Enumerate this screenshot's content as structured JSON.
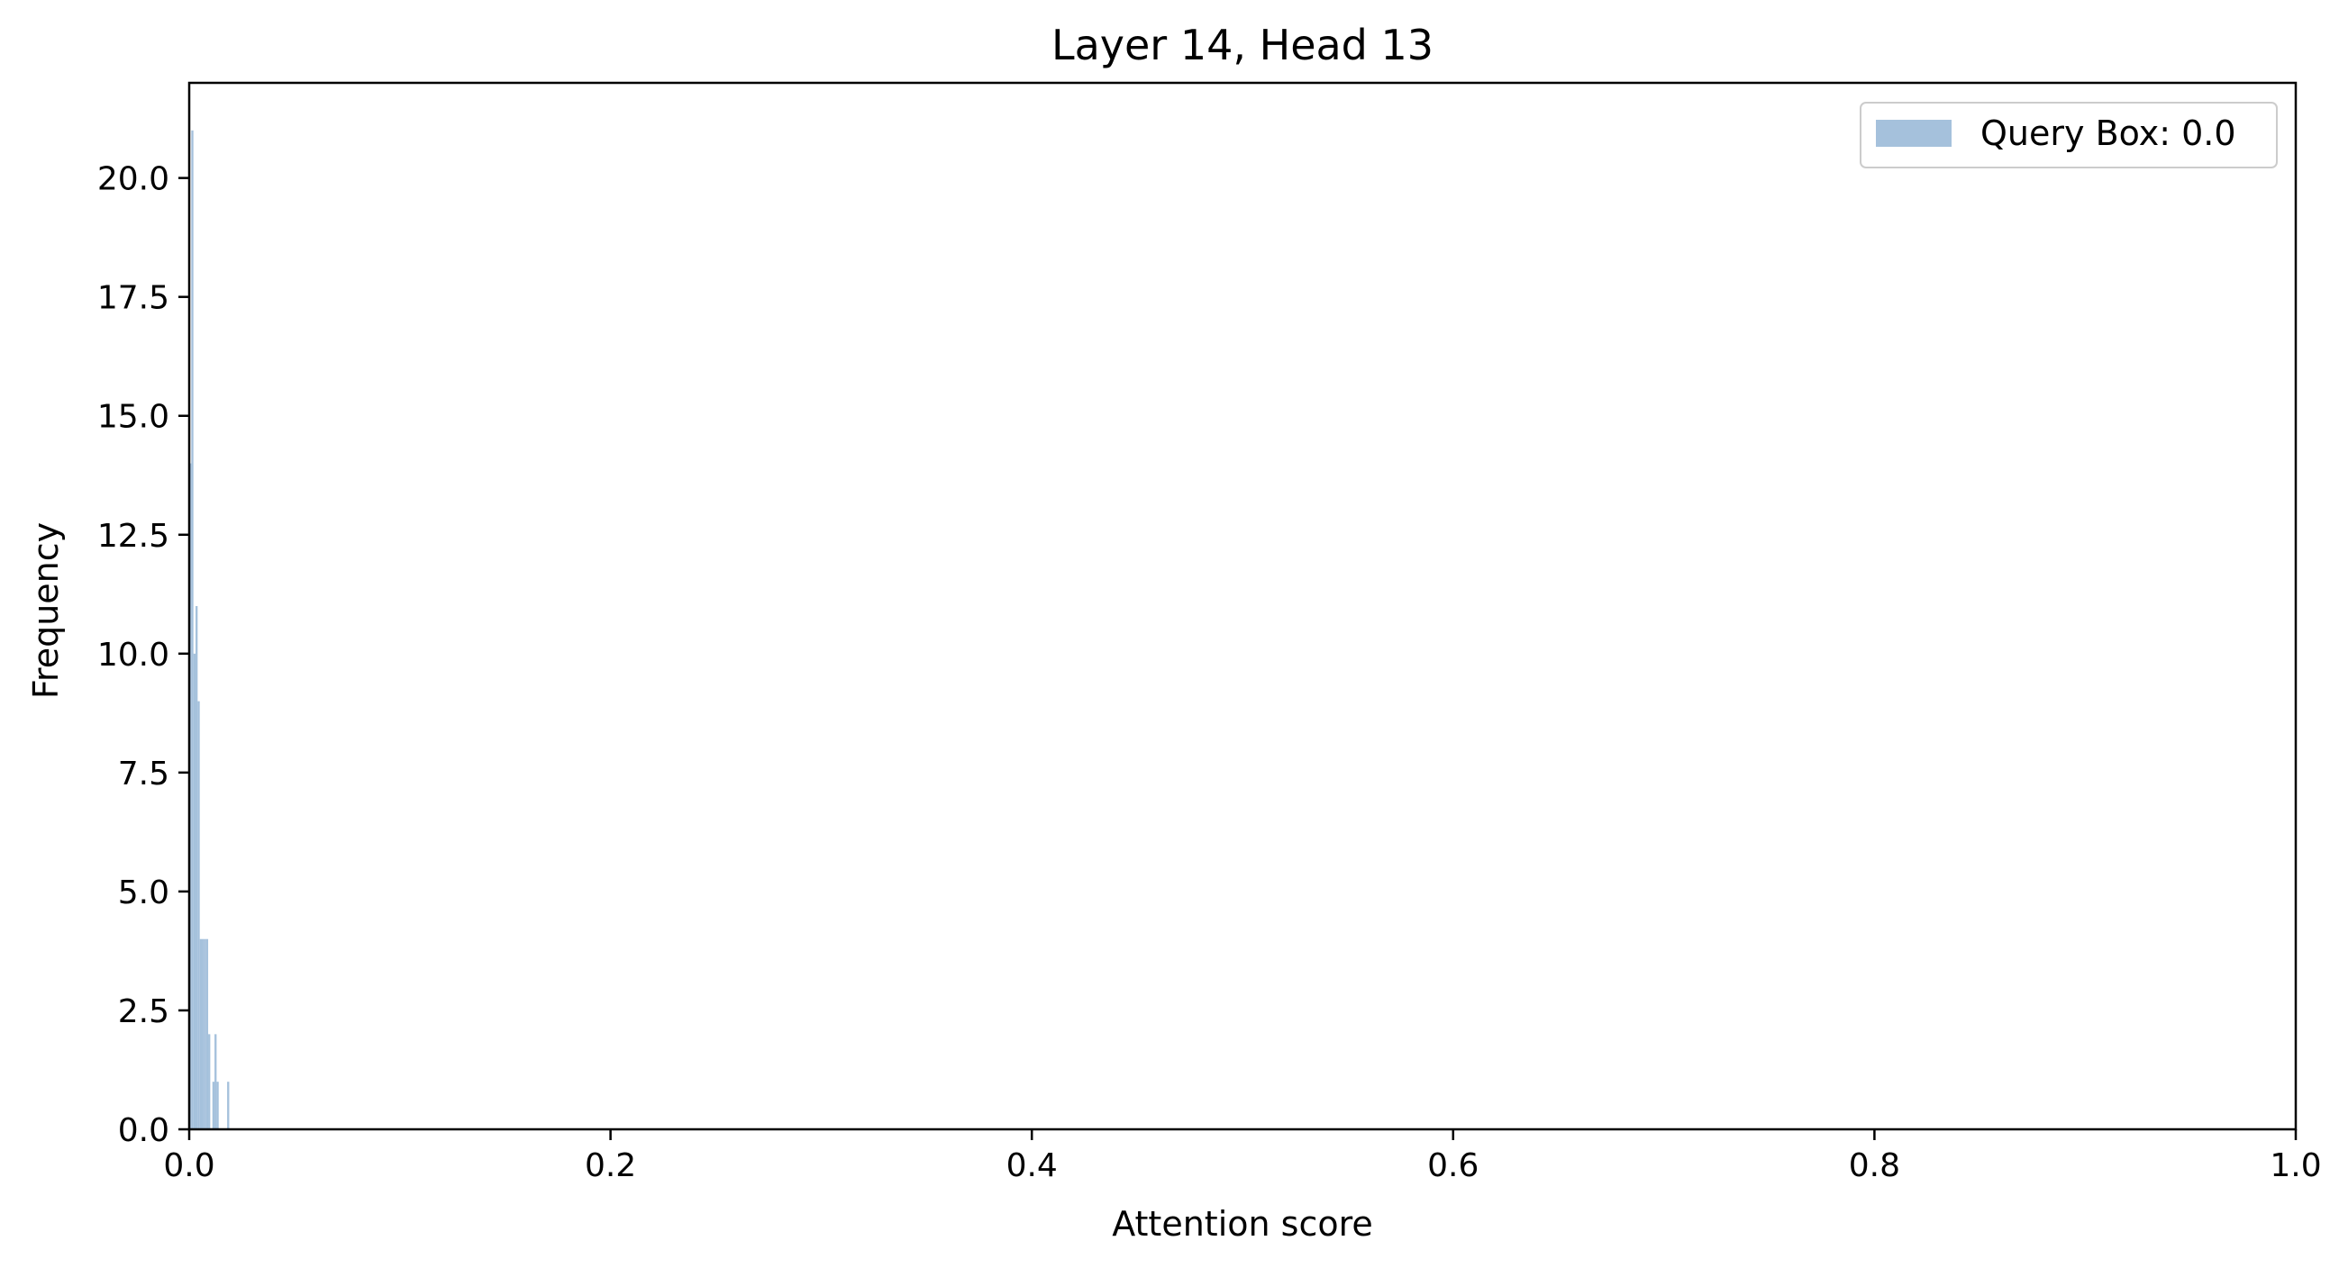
{
  "chart_data": {
    "type": "bar",
    "title": "Layer 14, Head 13",
    "xlabel": "Attention score",
    "ylabel": "Frequency",
    "xlim": [
      0.0,
      1.0
    ],
    "ylim": [
      0.0,
      22.0
    ],
    "xticks": [
      0.0,
      0.2,
      0.4,
      0.6,
      0.8,
      1.0
    ],
    "xtick_labels": [
      "0.0",
      "0.2",
      "0.4",
      "0.6",
      "0.8",
      "1.0"
    ],
    "yticks": [
      0.0,
      2.5,
      5.0,
      7.5,
      10.0,
      12.5,
      15.0,
      17.5,
      20.0
    ],
    "ytick_labels": [
      "0.0",
      "2.5",
      "5.0",
      "7.5",
      "10.0",
      "12.5",
      "15.0",
      "17.5",
      "20.0"
    ],
    "grid": false,
    "legend_position": "top-right",
    "series": [
      {
        "name": "Query Box: 0.0",
        "color": "#a5c1dc",
        "bin_width": 0.001,
        "bins": [
          {
            "x": 0.0,
            "count": 14
          },
          {
            "x": 0.001,
            "count": 21
          },
          {
            "x": 0.002,
            "count": 10
          },
          {
            "x": 0.003,
            "count": 11
          },
          {
            "x": 0.004,
            "count": 9
          },
          {
            "x": 0.005,
            "count": 4
          },
          {
            "x": 0.006,
            "count": 4
          },
          {
            "x": 0.007,
            "count": 4
          },
          {
            "x": 0.008,
            "count": 4
          },
          {
            "x": 0.009,
            "count": 2
          },
          {
            "x": 0.011,
            "count": 1
          },
          {
            "x": 0.012,
            "count": 2
          },
          {
            "x": 0.013,
            "count": 1
          },
          {
            "x": 0.018,
            "count": 1
          }
        ]
      }
    ]
  }
}
